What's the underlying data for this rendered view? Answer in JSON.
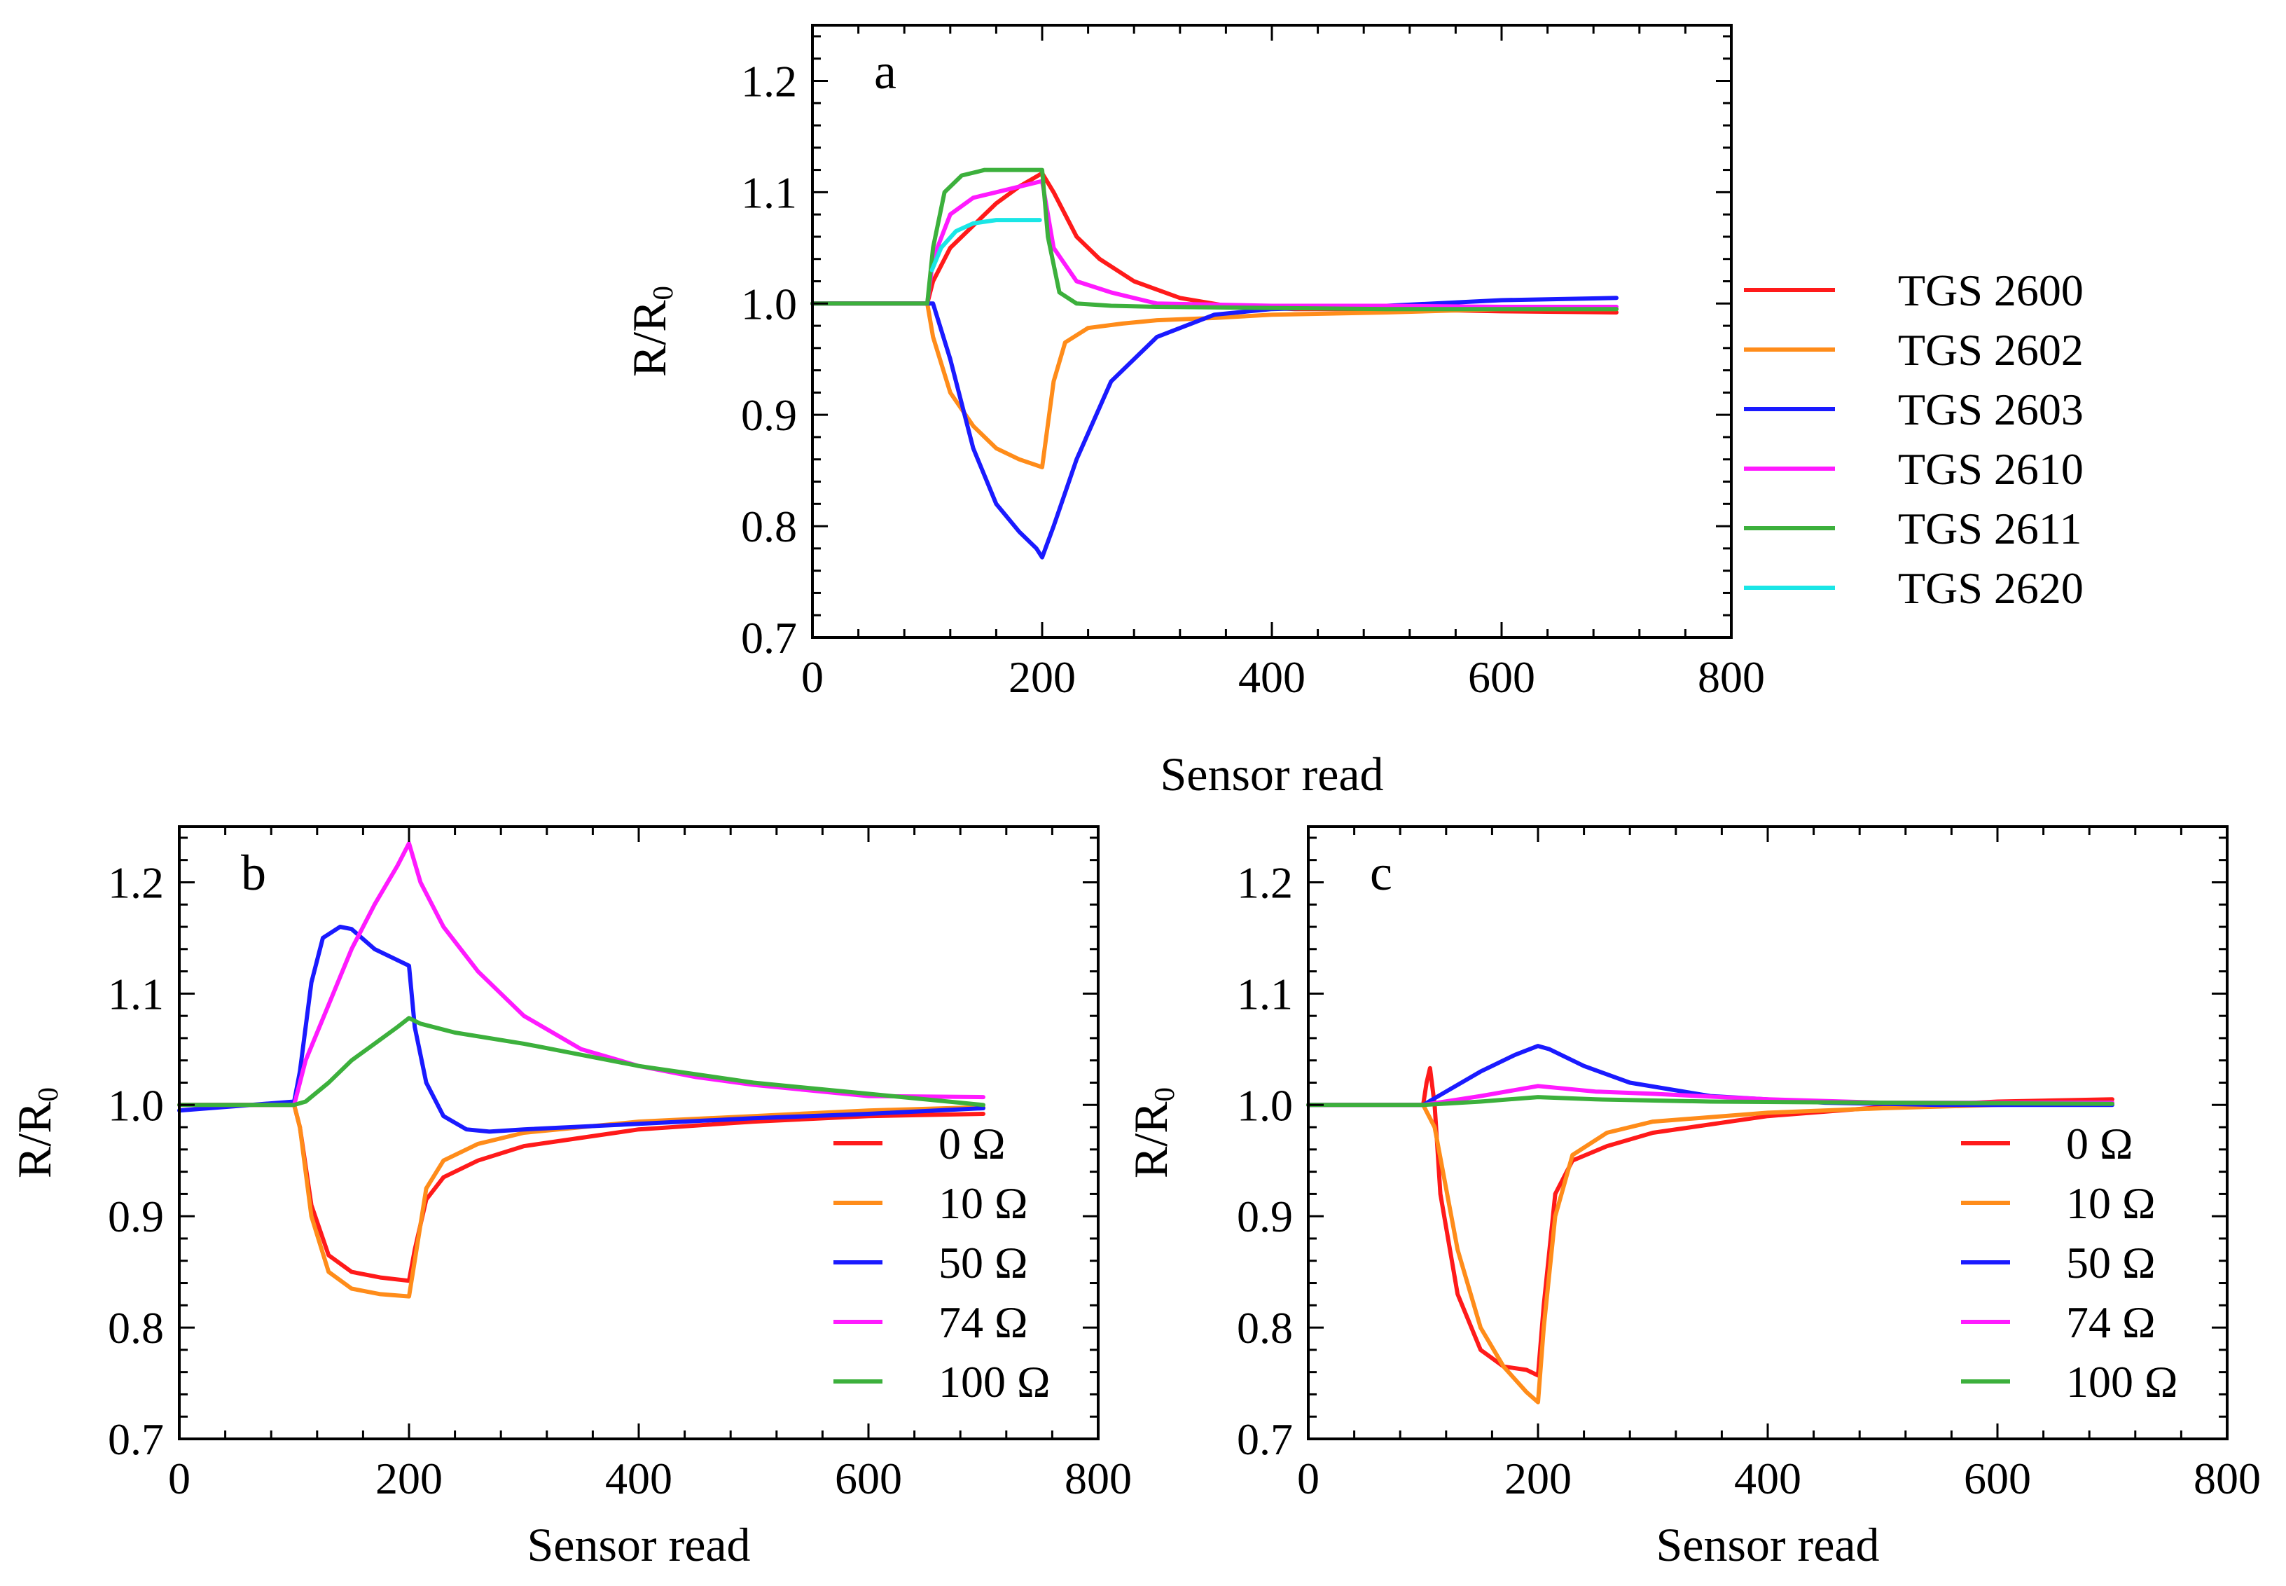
{
  "chart_data": [
    {
      "type": "line",
      "panel_label": "a",
      "xlabel": "Sensor read",
      "ylabel": "R/R",
      "ylabel_sub": "0",
      "xlim": [
        0,
        800
      ],
      "ylim": [
        0.7,
        1.25
      ],
      "xticks": [
        0,
        200,
        400,
        600,
        800
      ],
      "xtick_labels": [
        "0",
        "200",
        "400",
        "600",
        "800"
      ],
      "yticks": [
        0.7,
        0.8,
        0.9,
        1.0,
        1.1,
        1.2
      ],
      "ytick_labels": [
        "0.7",
        "0.8",
        "0.9",
        "1.0",
        "1.1",
        "1.2"
      ],
      "legend_position": "outside-right",
      "series": [
        {
          "name": "TGS 2600",
          "color": "#ff1a1a",
          "x": [
            0,
            100,
            105,
            120,
            140,
            160,
            180,
            200,
            210,
            230,
            250,
            280,
            320,
            360,
            420,
            500,
            600,
            700
          ],
          "y": [
            1.0,
            1.0,
            1.02,
            1.05,
            1.07,
            1.09,
            1.105,
            1.117,
            1.1,
            1.06,
            1.04,
            1.02,
            1.005,
            0.998,
            0.995,
            0.995,
            0.993,
            0.992
          ]
        },
        {
          "name": "TGS 2602",
          "color": "#ff8c1a",
          "x": [
            0,
            100,
            105,
            120,
            140,
            160,
            180,
            200,
            210,
            220,
            240,
            270,
            300,
            350,
            400,
            500,
            600,
            700
          ],
          "y": [
            1.0,
            1.0,
            0.97,
            0.92,
            0.89,
            0.87,
            0.86,
            0.853,
            0.93,
            0.965,
            0.978,
            0.982,
            0.985,
            0.987,
            0.99,
            0.992,
            0.995,
            0.995
          ]
        },
        {
          "name": "TGS 2603",
          "color": "#1a1aff",
          "x": [
            0,
            100,
            105,
            120,
            140,
            160,
            180,
            195,
            200,
            210,
            230,
            260,
            300,
            350,
            400,
            500,
            600,
            700
          ],
          "y": [
            1.0,
            1.0,
            1.0,
            0.95,
            0.87,
            0.82,
            0.795,
            0.78,
            0.772,
            0.8,
            0.86,
            0.93,
            0.97,
            0.99,
            0.995,
            0.998,
            1.003,
            1.005
          ]
        },
        {
          "name": "TGS 2610",
          "color": "#ff1aff",
          "x": [
            0,
            100,
            105,
            120,
            140,
            160,
            180,
            200,
            210,
            230,
            260,
            300,
            400,
            500,
            600,
            700
          ],
          "y": [
            1.0,
            1.0,
            1.04,
            1.08,
            1.095,
            1.1,
            1.105,
            1.11,
            1.05,
            1.02,
            1.01,
            1.0,
            0.998,
            0.998,
            0.997,
            0.997
          ]
        },
        {
          "name": "TGS 2611",
          "color": "#3cb03c",
          "x": [
            0,
            100,
            105,
            115,
            130,
            150,
            170,
            190,
            200,
            205,
            215,
            230,
            260,
            300,
            400,
            500,
            600,
            700
          ],
          "y": [
            1.0,
            1.0,
            1.05,
            1.1,
            1.115,
            1.12,
            1.12,
            1.12,
            1.12,
            1.06,
            1.01,
            1.0,
            0.998,
            0.997,
            0.996,
            0.995,
            0.995,
            0.995
          ]
        },
        {
          "name": "TGS 2620",
          "color": "#1ae6e6",
          "x": [
            104,
            112,
            125,
            140,
            160,
            180,
            198
          ],
          "y": [
            1.03,
            1.05,
            1.065,
            1.072,
            1.075,
            1.075,
            1.075
          ]
        }
      ]
    },
    {
      "type": "line",
      "panel_label": "b",
      "xlabel": "Sensor read",
      "ylabel": "R/R",
      "ylabel_sub": "0",
      "xlim": [
        0,
        800
      ],
      "ylim": [
        0.7,
        1.25
      ],
      "xticks": [
        0,
        200,
        400,
        600,
        800
      ],
      "xtick_labels": [
        "0",
        "200",
        "400",
        "600",
        "800"
      ],
      "yticks": [
        0.7,
        0.8,
        0.9,
        1.0,
        1.1,
        1.2
      ],
      "ytick_labels": [
        "0.7",
        "0.8",
        "0.9",
        "1.0",
        "1.1",
        "1.2"
      ],
      "legend_position": "bottom-right",
      "series": [
        {
          "name": "0 Ω",
          "color": "#ff1a1a",
          "x": [
            0,
            100,
            105,
            115,
            130,
            150,
            175,
            200,
            205,
            215,
            230,
            260,
            300,
            400,
            500,
            600,
            700
          ],
          "y": [
            1.0,
            1.0,
            0.98,
            0.91,
            0.865,
            0.85,
            0.845,
            0.842,
            0.87,
            0.915,
            0.935,
            0.95,
            0.963,
            0.978,
            0.985,
            0.99,
            0.992
          ]
        },
        {
          "name": "10 Ω",
          "color": "#ff8c1a",
          "x": [
            0,
            100,
            105,
            115,
            130,
            150,
            175,
            200,
            205,
            215,
            230,
            260,
            300,
            400,
            500,
            600,
            700
          ],
          "y": [
            1.0,
            1.0,
            0.98,
            0.9,
            0.85,
            0.835,
            0.83,
            0.828,
            0.86,
            0.925,
            0.95,
            0.965,
            0.975,
            0.985,
            0.99,
            0.995,
            0.998
          ]
        },
        {
          "name": "50 Ω",
          "color": "#1a1aff",
          "x": [
            0,
            100,
            105,
            115,
            125,
            140,
            150,
            170,
            200,
            205,
            215,
            230,
            250,
            270,
            300,
            400,
            500,
            600,
            700
          ],
          "y": [
            0.995,
            1.003,
            1.03,
            1.11,
            1.15,
            1.16,
            1.158,
            1.14,
            1.125,
            1.07,
            1.02,
            0.99,
            0.978,
            0.976,
            0.978,
            0.983,
            0.988,
            0.992,
            0.997
          ]
        },
        {
          "name": "74 Ω",
          "color": "#ff1aff",
          "x": [
            0,
            100,
            110,
            130,
            150,
            170,
            190,
            200,
            210,
            230,
            260,
            300,
            350,
            400,
            450,
            500,
            600,
            700
          ],
          "y": [
            1.0,
            1.0,
            1.04,
            1.09,
            1.14,
            1.18,
            1.215,
            1.235,
            1.2,
            1.16,
            1.12,
            1.08,
            1.05,
            1.035,
            1.025,
            1.018,
            1.008,
            1.007
          ]
        },
        {
          "name": "100 Ω",
          "color": "#3cb03c",
          "x": [
            0,
            100,
            110,
            130,
            150,
            170,
            190,
            200,
            210,
            240,
            300,
            400,
            500,
            600,
            700
          ],
          "y": [
            1.0,
            1.0,
            1.003,
            1.02,
            1.04,
            1.055,
            1.07,
            1.078,
            1.073,
            1.065,
            1.055,
            1.035,
            1.02,
            1.01,
            1.0
          ]
        }
      ]
    },
    {
      "type": "line",
      "panel_label": "c",
      "xlabel": "Sensor read",
      "ylabel": "R/R",
      "ylabel_sub": "0",
      "xlim": [
        0,
        800
      ],
      "ylim": [
        0.7,
        1.25
      ],
      "xticks": [
        0,
        200,
        400,
        600,
        800
      ],
      "xtick_labels": [
        "0",
        "200",
        "400",
        "600",
        "800"
      ],
      "yticks": [
        0.7,
        0.8,
        0.9,
        1.0,
        1.1,
        1.2
      ],
      "ytick_labels": [
        "0.7",
        "0.8",
        "0.9",
        "1.0",
        "1.1",
        "1.2"
      ],
      "legend_position": "bottom-right",
      "series": [
        {
          "name": "0 Ω",
          "color": "#ff1a1a",
          "x": [
            0,
            100,
            103,
            106,
            110,
            115,
            130,
            150,
            170,
            190,
            200,
            205,
            215,
            230,
            260,
            300,
            400,
            500,
            600,
            700
          ],
          "y": [
            1.0,
            1.0,
            1.02,
            1.033,
            1.0,
            0.92,
            0.83,
            0.78,
            0.765,
            0.762,
            0.757,
            0.82,
            0.92,
            0.95,
            0.963,
            0.975,
            0.99,
            0.998,
            1.003,
            1.005
          ]
        },
        {
          "name": "10 Ω",
          "color": "#ff8c1a",
          "x": [
            0,
            100,
            110,
            130,
            150,
            170,
            190,
            200,
            205,
            215,
            230,
            260,
            300,
            400,
            500,
            600,
            700
          ],
          "y": [
            1.0,
            1.0,
            0.98,
            0.87,
            0.8,
            0.765,
            0.742,
            0.733,
            0.8,
            0.9,
            0.955,
            0.975,
            0.985,
            0.993,
            0.997,
            1.0,
            1.002
          ]
        },
        {
          "name": "50 Ω",
          "color": "#1a1aff",
          "x": [
            0,
            100,
            120,
            150,
            180,
            200,
            210,
            240,
            280,
            350,
            450,
            550,
            700
          ],
          "y": [
            1.0,
            1.0,
            1.012,
            1.03,
            1.045,
            1.053,
            1.05,
            1.035,
            1.02,
            1.008,
            1.002,
            1.0,
            1.0
          ]
        },
        {
          "name": "74 Ω",
          "color": "#ff1aff",
          "x": [
            0,
            100,
            150,
            200,
            250,
            300,
            400,
            500,
            700
          ],
          "y": [
            1.0,
            1.0,
            1.008,
            1.017,
            1.012,
            1.01,
            1.005,
            1.002,
            1.002
          ]
        },
        {
          "name": "100 Ω",
          "color": "#3cb03c",
          "x": [
            0,
            100,
            150,
            200,
            250,
            350,
            500,
            700
          ],
          "y": [
            1.0,
            1.0,
            1.003,
            1.007,
            1.005,
            1.003,
            1.002,
            1.001
          ]
        }
      ]
    }
  ]
}
